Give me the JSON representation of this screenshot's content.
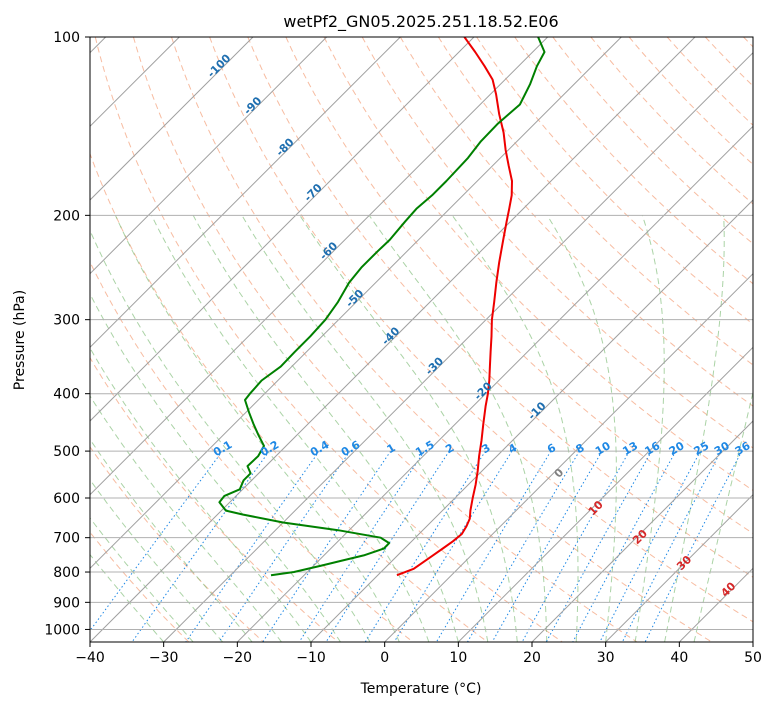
{
  "chart_data": {
    "type": "line",
    "title": "wetPf2_GN05.2025.251.18.52.E06",
    "xlabel": "Temperature (°C)",
    "ylabel": "Pressure (hPa)",
    "xlim": [
      -40,
      50
    ],
    "ylim": [
      1050,
      100
    ],
    "yscale": "log",
    "grid": true,
    "x_ticks": [
      -40,
      -30,
      -20,
      -10,
      0,
      10,
      20,
      30,
      40,
      50
    ],
    "y_ticks": [
      100,
      200,
      300,
      400,
      500,
      600,
      700,
      800,
      900,
      1000
    ],
    "colors": {
      "temperature": "#ee0000",
      "dewpoint": "#008000",
      "dry_adiabat": "#f4a582",
      "moist_adiabat": "#88c080",
      "mixing_ratio": "#1e88e5",
      "skew_isotherm": "#a0a0a0",
      "isotherm_label": "#1f6fb0",
      "moist_label": "#d62728",
      "dry_adiabat_curve": "#d2b48c"
    },
    "series": [
      {
        "key": "temperature",
        "pressure": [
          810,
          790,
          770,
          750,
          730,
          710,
          690,
          670,
          650,
          630,
          600,
          570,
          540,
          510,
          480,
          450,
          420,
          400,
          380,
          360,
          340,
          320,
          300,
          280,
          260,
          240,
          220,
          205,
          195,
          185,
          175,
          165,
          155,
          145,
          135,
          125,
          118,
          112,
          106,
          100
        ],
        "temperature": [
          -7.4,
          -6.0,
          -5.6,
          -5.2,
          -4.8,
          -4.4,
          -4.2,
          -4.6,
          -5.2,
          -6.2,
          -7.6,
          -9.0,
          -10.6,
          -12.4,
          -14.2,
          -16.2,
          -18.3,
          -19.7,
          -21.3,
          -23.1,
          -25.0,
          -27.0,
          -29.2,
          -31.3,
          -33.6,
          -36.0,
          -38.5,
          -40.5,
          -41.9,
          -43.4,
          -45.3,
          -47.8,
          -50.4,
          -53.0,
          -56.1,
          -59.2,
          -61.7,
          -64.6,
          -67.8,
          -71.3
        ]
      },
      {
        "key": "dewpoint",
        "pressure": [
          810,
          800,
          780,
          765,
          750,
          730,
          715,
          700,
          680,
          660,
          640,
          630,
          610,
          595,
          580,
          560,
          545,
          530,
          510,
          490,
          470,
          450,
          430,
          410,
          400,
          380,
          360,
          340,
          320,
          300,
          280,
          260,
          245,
          230,
          220,
          205,
          195,
          185,
          175,
          160,
          150,
          140,
          130,
          120,
          112,
          106,
          100
        ],
        "temperature": [
          -24.5,
          -21.8,
          -18.9,
          -16.8,
          -14.6,
          -12.8,
          -12.8,
          -14.7,
          -21.5,
          -30.0,
          -36.5,
          -39.4,
          -41.4,
          -41.6,
          -40.4,
          -41.1,
          -41.1,
          -42.5,
          -42.4,
          -43.0,
          -45.2,
          -47.4,
          -49.6,
          -51.8,
          -52.0,
          -52.2,
          -51.5,
          -51.6,
          -51.6,
          -51.8,
          -52.5,
          -53.6,
          -54.0,
          -54.0,
          -53.9,
          -54.3,
          -54.5,
          -54.2,
          -54.2,
          -54.4,
          -54.9,
          -55.0,
          -54.6,
          -56.0,
          -57.5,
          -58.4,
          -61.3
        ]
      }
    ],
    "isotherm_labels": [
      "-100",
      "-90",
      "-80",
      "-70",
      "-60",
      "-50",
      "-40",
      "-30",
      "-20",
      "-10"
    ],
    "mixing_ratio_labels": [
      "0.1",
      "0.2",
      "0.4",
      "0.6",
      "1",
      "1.5",
      "2",
      "3",
      "4",
      "6",
      "8",
      "10",
      "13",
      "16",
      "20",
      "25",
      "30",
      "36"
    ],
    "moist_adiabat_labels": [
      "0",
      "10",
      "20",
      "30",
      "40"
    ]
  }
}
